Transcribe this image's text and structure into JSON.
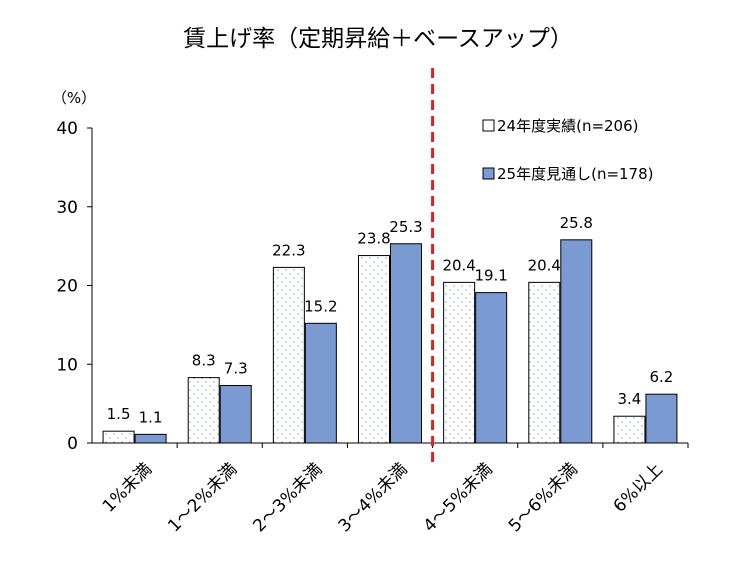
{
  "chart_data": {
    "type": "bar",
    "title": "賃上げ率（定期昇給＋ベースアップ）",
    "ylabel": "（%）",
    "xlabel": "",
    "ylim": [
      0,
      40
    ],
    "yticks": [
      0,
      10,
      20,
      30,
      40
    ],
    "categories": [
      "1%未満",
      "1～2%未満",
      "2～3%未満",
      "3～4%未満",
      "4～5%未満",
      "5～6%未満",
      "6%以上"
    ],
    "series": [
      {
        "name": "24年度実績(n=206)",
        "values": [
          1.5,
          8.3,
          22.3,
          23.8,
          20.4,
          20.4,
          3.4
        ],
        "labels": [
          "1.5",
          "8.3",
          "22.3",
          "23.8",
          "20.4",
          "20.4",
          "3.4"
        ]
      },
      {
        "name": "25年度見通し(n=178)",
        "values": [
          1.1,
          7.3,
          15.2,
          25.3,
          19.1,
          25.8,
          6.2
        ],
        "labels": [
          "1.1",
          "7.3",
          "15.2",
          "25.3",
          "19.1",
          "25.8",
          "6.2"
        ]
      }
    ],
    "legend_position": "top-right",
    "divider_between": [
      "3～4%未満",
      "4～5%未満"
    ],
    "colors": {
      "series0_fill": "#ffffff",
      "series0_dots": "#a9b9df",
      "series1_fill": "#7b9ad1",
      "divider": "#e02020",
      "axis": "#000000"
    }
  }
}
